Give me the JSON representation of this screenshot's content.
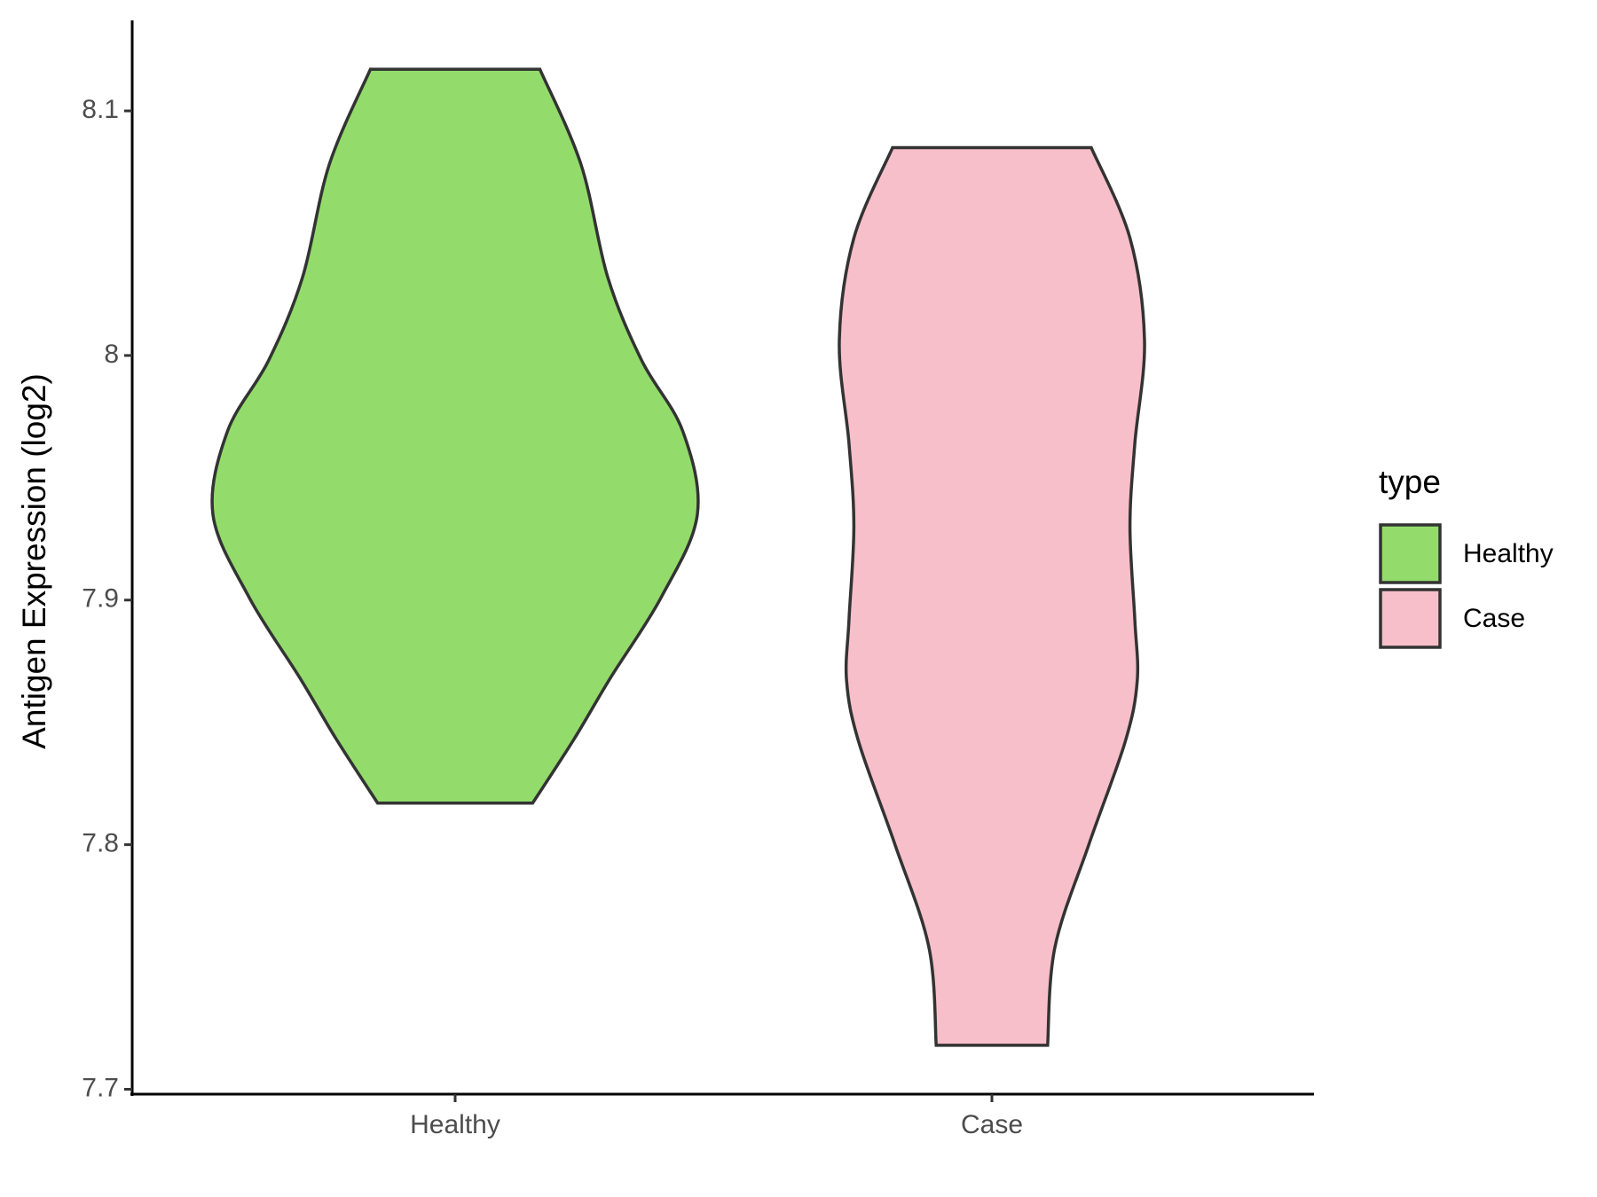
{
  "chart_data": {
    "type": "violin",
    "ylabel": "Antigen Expression (log2)",
    "legend_title": "type",
    "categories": [
      "Healthy",
      "Case"
    ],
    "series": [
      {
        "name": "Healthy",
        "color": "#93dc6c",
        "y": [
          8.117,
          8.078,
          8.032,
          7.998,
          7.969,
          7.935,
          7.901,
          7.868,
          7.843,
          7.817
        ],
        "width": [
          0.35,
          0.52,
          0.63,
          0.77,
          0.94,
          1.0,
          0.85,
          0.64,
          0.49,
          0.32
        ]
      },
      {
        "name": "Case",
        "color": "#f7bfca",
        "y": [
          8.085,
          8.048,
          8.006,
          7.964,
          7.93,
          7.892,
          7.867,
          7.842,
          7.8,
          7.758,
          7.718
        ],
        "width": [
          0.41,
          0.57,
          0.63,
          0.59,
          0.57,
          0.59,
          0.6,
          0.55,
          0.4,
          0.26,
          0.23
        ]
      }
    ],
    "ylim": [
      7.698,
      8.137
    ],
    "yticks": [
      7.7,
      7.8,
      7.9,
      8.0,
      8.1
    ]
  }
}
